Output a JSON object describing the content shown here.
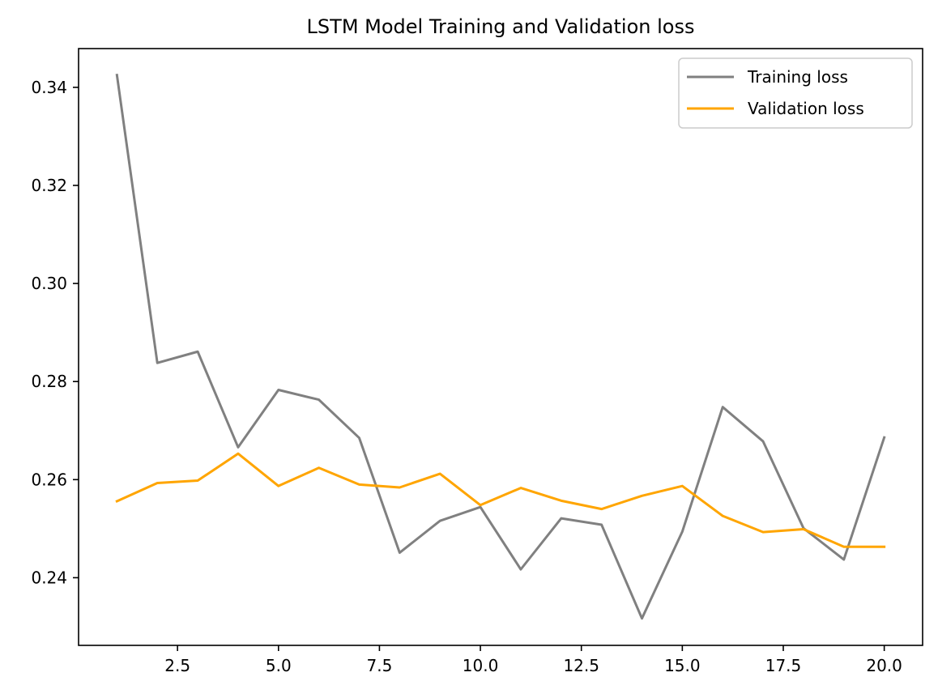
{
  "chart_data": {
    "type": "line",
    "title": "LSTM Model Training and Validation loss",
    "xlabel": "",
    "ylabel": "",
    "xlim": [
      0.05,
      20.95
    ],
    "ylim": [
      0.2262,
      0.3479
    ],
    "x_ticks": [
      2.5,
      5.0,
      7.5,
      10.0,
      12.5,
      15.0,
      17.5,
      20.0
    ],
    "x_tick_labels": [
      "2.5",
      "5.0",
      "7.5",
      "10.0",
      "12.5",
      "15.0",
      "17.5",
      "20.0"
    ],
    "y_ticks": [
      0.24,
      0.26,
      0.28,
      0.3,
      0.32,
      0.34
    ],
    "y_tick_labels": [
      "0.24",
      "0.26",
      "0.28",
      "0.30",
      "0.32",
      "0.34"
    ],
    "grid": false,
    "legend_position": "upper right",
    "x": [
      1,
      2,
      3,
      4,
      5,
      6,
      7,
      8,
      9,
      10,
      11,
      12,
      13,
      14,
      15,
      16,
      17,
      18,
      19,
      20
    ],
    "series": [
      {
        "name": "Training loss",
        "color": "#808080",
        "values": [
          0.3425,
          0.2838,
          0.2861,
          0.2666,
          0.2783,
          0.2763,
          0.2685,
          0.2451,
          0.2516,
          0.2544,
          0.2417,
          0.2521,
          0.2508,
          0.2317,
          0.2494,
          0.2748,
          0.2678,
          0.2501,
          0.2437,
          0.2686
        ]
      },
      {
        "name": "Validation loss",
        "color": "#ffa500",
        "values": [
          0.2556,
          0.2593,
          0.2598,
          0.2653,
          0.2587,
          0.2624,
          0.259,
          0.2584,
          0.2612,
          0.2548,
          0.2583,
          0.2557,
          0.254,
          0.2567,
          0.2587,
          0.2526,
          0.2493,
          0.2499,
          0.2463,
          0.2463
        ]
      }
    ]
  }
}
